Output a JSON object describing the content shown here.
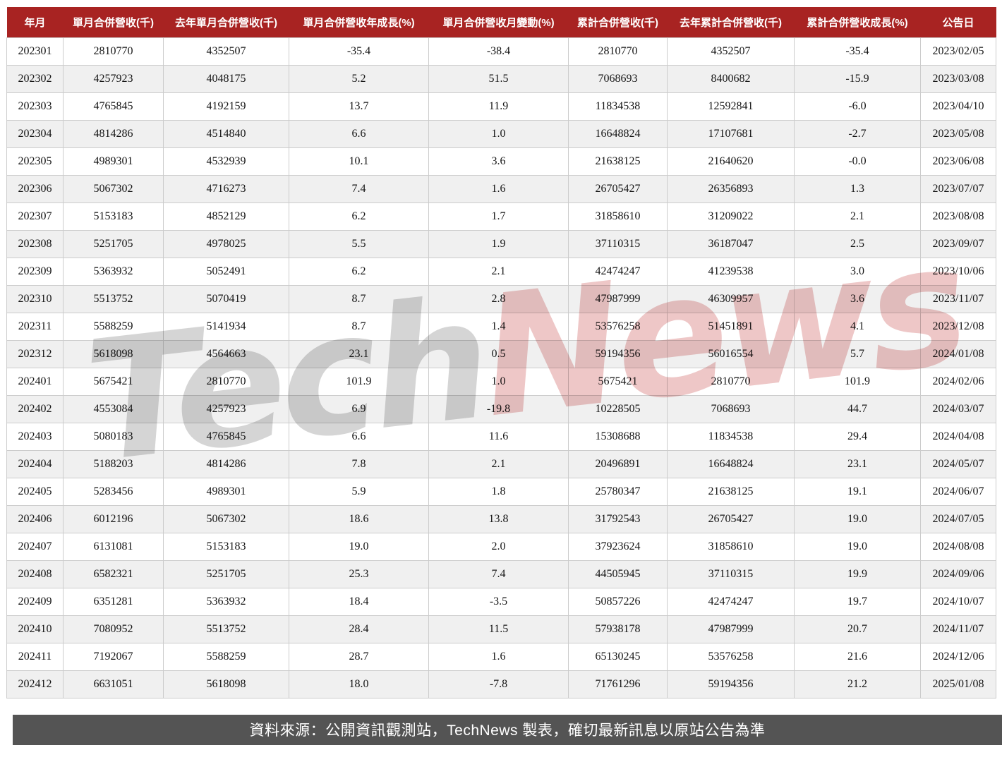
{
  "chart_data": {
    "type": "table",
    "columns": [
      "年月",
      "單月合併營收(千)",
      "去年單月合併營收(千)",
      "單月合併營收年成長(%)",
      "單月合併營收月變動(%)",
      "累計合併營收(千)",
      "去年累計合併營收(千)",
      "累計合併營收成長(%)",
      "公告日"
    ],
    "rows": [
      [
        "202301",
        "2810770",
        "4352507",
        "-35.4",
        "-38.4",
        "2810770",
        "4352507",
        "-35.4",
        "2023/02/05"
      ],
      [
        "202302",
        "4257923",
        "4048175",
        "5.2",
        "51.5",
        "7068693",
        "8400682",
        "-15.9",
        "2023/03/08"
      ],
      [
        "202303",
        "4765845",
        "4192159",
        "13.7",
        "11.9",
        "11834538",
        "12592841",
        "-6.0",
        "2023/04/10"
      ],
      [
        "202304",
        "4814286",
        "4514840",
        "6.6",
        "1.0",
        "16648824",
        "17107681",
        "-2.7",
        "2023/05/08"
      ],
      [
        "202305",
        "4989301",
        "4532939",
        "10.1",
        "3.6",
        "21638125",
        "21640620",
        "-0.0",
        "2023/06/08"
      ],
      [
        "202306",
        "5067302",
        "4716273",
        "7.4",
        "1.6",
        "26705427",
        "26356893",
        "1.3",
        "2023/07/07"
      ],
      [
        "202307",
        "5153183",
        "4852129",
        "6.2",
        "1.7",
        "31858610",
        "31209022",
        "2.1",
        "2023/08/08"
      ],
      [
        "202308",
        "5251705",
        "4978025",
        "5.5",
        "1.9",
        "37110315",
        "36187047",
        "2.5",
        "2023/09/07"
      ],
      [
        "202309",
        "5363932",
        "5052491",
        "6.2",
        "2.1",
        "42474247",
        "41239538",
        "3.0",
        "2023/10/06"
      ],
      [
        "202310",
        "5513752",
        "5070419",
        "8.7",
        "2.8",
        "47987999",
        "46309957",
        "3.6",
        "2023/11/07"
      ],
      [
        "202311",
        "5588259",
        "5141934",
        "8.7",
        "1.4",
        "53576258",
        "51451891",
        "4.1",
        "2023/12/08"
      ],
      [
        "202312",
        "5618098",
        "4564663",
        "23.1",
        "0.5",
        "59194356",
        "56016554",
        "5.7",
        "2024/01/08"
      ],
      [
        "202401",
        "5675421",
        "2810770",
        "101.9",
        "1.0",
        "5675421",
        "2810770",
        "101.9",
        "2024/02/06"
      ],
      [
        "202402",
        "4553084",
        "4257923",
        "6.9",
        "-19.8",
        "10228505",
        "7068693",
        "44.7",
        "2024/03/07"
      ],
      [
        "202403",
        "5080183",
        "4765845",
        "6.6",
        "11.6",
        "15308688",
        "11834538",
        "29.4",
        "2024/04/08"
      ],
      [
        "202404",
        "5188203",
        "4814286",
        "7.8",
        "2.1",
        "20496891",
        "16648824",
        "23.1",
        "2024/05/07"
      ],
      [
        "202405",
        "5283456",
        "4989301",
        "5.9",
        "1.8",
        "25780347",
        "21638125",
        "19.1",
        "2024/06/07"
      ],
      [
        "202406",
        "6012196",
        "5067302",
        "18.6",
        "13.8",
        "31792543",
        "26705427",
        "19.0",
        "2024/07/05"
      ],
      [
        "202407",
        "6131081",
        "5153183",
        "19.0",
        "2.0",
        "37923624",
        "31858610",
        "19.0",
        "2024/08/08"
      ],
      [
        "202408",
        "6582321",
        "5251705",
        "25.3",
        "7.4",
        "44505945",
        "37110315",
        "19.9",
        "2024/09/06"
      ],
      [
        "202409",
        "6351281",
        "5363932",
        "18.4",
        "-3.5",
        "50857226",
        "42474247",
        "19.7",
        "2024/10/07"
      ],
      [
        "202410",
        "7080952",
        "5513752",
        "28.4",
        "11.5",
        "57938178",
        "47987999",
        "20.7",
        "2024/11/07"
      ],
      [
        "202411",
        "7192067",
        "5588259",
        "28.7",
        "1.6",
        "65130245",
        "53576258",
        "21.6",
        "2024/12/06"
      ],
      [
        "202412",
        "6631051",
        "5618098",
        "18.0",
        "-7.8",
        "71761296",
        "59194356",
        "21.2",
        "2025/01/08"
      ]
    ],
    "title": "",
    "legend": "none",
    "grid": "on"
  },
  "watermark": {
    "part1": "Tech",
    "part2": "News"
  },
  "footer": {
    "source_note": "資料來源：公開資訊觀測站，TechNews 製表，確切最新訊息以原站公告為準"
  },
  "colors": {
    "header_bg": "#A82322",
    "header_text": "#FFFFFF",
    "row_alt_bg": "#F0F0F0",
    "border": "#CCCCCC",
    "footer_bg": "#545454",
    "footer_text": "#FFFFFF",
    "watermark_gray": "#ABABAB",
    "watermark_pink": "#DD9090"
  }
}
